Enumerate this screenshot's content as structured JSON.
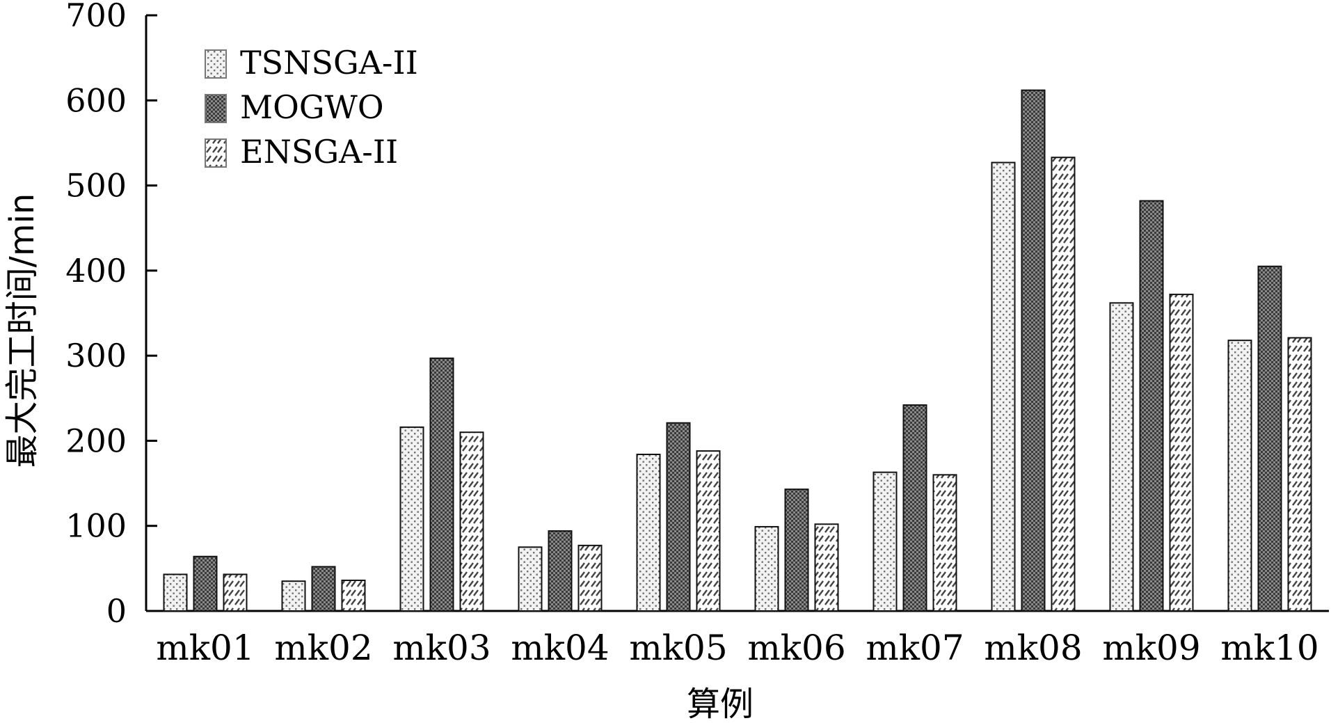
{
  "chart_data": {
    "type": "bar",
    "title": "",
    "xlabel": "算例",
    "ylabel": "最大完工时间/min",
    "ylim": [
      0,
      700
    ],
    "yticks": [
      0,
      100,
      200,
      300,
      400,
      500,
      600,
      700
    ],
    "grid": false,
    "legend_position": "top-left",
    "categories": [
      "mk01",
      "mk02",
      "mk03",
      "mk04",
      "mk05",
      "mk06",
      "mk07",
      "mk08",
      "mk09",
      "mk10"
    ],
    "series": [
      {
        "name": "TSNSGA-II",
        "pattern": "dots",
        "color": "#e6e6e6",
        "values": [
          43,
          35,
          216,
          75,
          184,
          99,
          163,
          527,
          362,
          318
        ]
      },
      {
        "name": "MOGWO",
        "pattern": "dark-checker",
        "color": "#7a7a7a",
        "values": [
          64,
          52,
          297,
          94,
          221,
          143,
          242,
          612,
          482,
          405
        ]
      },
      {
        "name": "ENSGA-II",
        "pattern": "diagonal-dashes",
        "color": "#ffffff",
        "values": [
          43,
          36,
          210,
          77,
          188,
          102,
          160,
          533,
          372,
          321
        ]
      }
    ]
  }
}
